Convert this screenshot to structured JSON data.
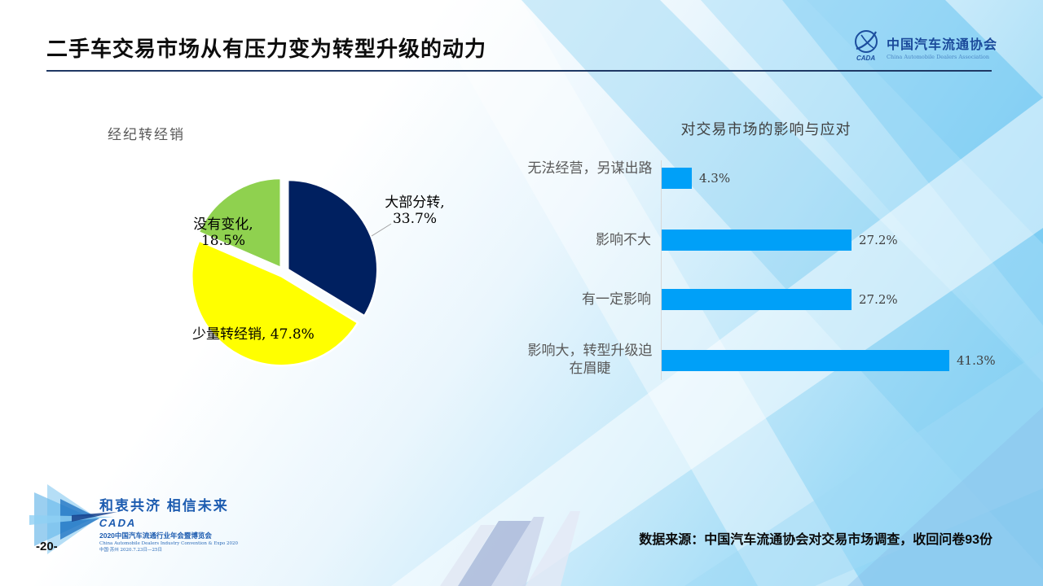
{
  "slide": {
    "title": "二手车交易市场从有压力变为转型升级的动力",
    "page_number": "-20-",
    "source_note": "数据来源：中国汽车流通协会对交易市场调查，收回问卷93份"
  },
  "org_logo": {
    "name_cn": "中国汽车流通协会",
    "name_en": "China Automobile Dealers Association"
  },
  "event_logo": {
    "slogan": "和衷共济 相信未来",
    "brand": "CADA",
    "event_cn": "2020中国汽车流通行业年会暨博览会",
    "event_en": "China Automobile Dealers Industry Convention & Expo 2020",
    "event_detail": "中国·苏州 2020.7.23日—25日"
  },
  "pie_chart": {
    "title": "经纪转经销",
    "label1_line1": "大部分转,",
    "label1_line2": "33.7%",
    "label2": "少量转经销, 47.8%",
    "label3_line1": "没有变化,",
    "label3_line2": "18.5%"
  },
  "bar_chart": {
    "title": "对交易市场的影响与应对",
    "rows": [
      {
        "label": "无法经营，另谋出路",
        "value": "4.3%"
      },
      {
        "label": "影响不大",
        "value": "27.2%"
      },
      {
        "label": "有一定影响",
        "value": "27.2%"
      },
      {
        "label": "影响大，转型升级迫在眉睫",
        "value": "41.3%"
      }
    ]
  },
  "chart_data": [
    {
      "type": "pie",
      "title": "经纪转经销",
      "categories": [
        "大部分转",
        "少量转经销",
        "没有变化"
      ],
      "values": [
        33.7,
        47.8,
        18.5
      ],
      "unit": "%",
      "colors": [
        "#002060",
        "#FFFF00",
        "#8FD14F"
      ],
      "start_angle_deg": 0,
      "direction": "clockwise",
      "exploded": true,
      "legend": "off"
    },
    {
      "type": "bar",
      "orientation": "horizontal",
      "title": "对交易市场的影响与应对",
      "categories": [
        "无法经营，另谋出路",
        "影响不大",
        "有一定影响",
        "影响大，转型升级迫在眉睫"
      ],
      "values": [
        4.3,
        27.2,
        27.2,
        41.3
      ],
      "unit": "%",
      "value_labels": [
        "4.3%",
        "27.2%",
        "27.2%",
        "41.3%"
      ],
      "bar_color": "#00A0F8",
      "xlim": [
        0,
        45
      ],
      "grid": "off",
      "legend": "off"
    }
  ],
  "colors": {
    "title_text": "#0d0d0d",
    "title_underline": "#1f3864",
    "pie_navy": "#002060",
    "pie_yellow": "#FFFF00",
    "pie_green": "#8FD14F",
    "bar_blue": "#00A0F8",
    "label_gray": "#595959",
    "logo_blue": "#1d5cb0"
  }
}
